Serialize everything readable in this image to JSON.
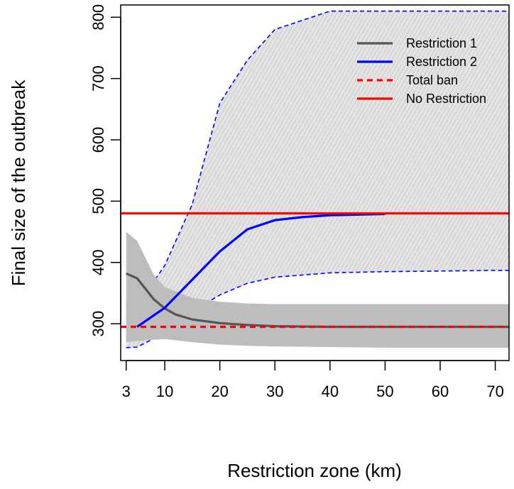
{
  "chart_data": {
    "type": "line",
    "title": "",
    "xlabel": "Restriction zone (km)",
    "ylabel": "Final size of the outbreak",
    "xlim": [
      2,
      72.5
    ],
    "ylim": [
      240,
      820
    ],
    "x_ticks": [
      3,
      10,
      20,
      30,
      40,
      50,
      60,
      70
    ],
    "y_ticks": [
      300,
      400,
      500,
      600,
      700,
      800
    ],
    "grid": false,
    "legend": {
      "placement": "top-right",
      "entries": [
        {
          "label": "Restriction 1",
          "color": "#555555",
          "style": "solid"
        },
        {
          "label": "Restriction 2",
          "color": "#0000ff",
          "style": "solid"
        },
        {
          "label": "Total ban",
          "color": "#ff0000",
          "style": "dashed"
        },
        {
          "label": "No Restriction",
          "color": "#ff0000",
          "style": "solid"
        }
      ]
    },
    "bands": [
      {
        "series": "Restriction 2",
        "fill": "hatched-gray",
        "edge_color": "#0000ff",
        "x": [
          3,
          5,
          10,
          15,
          20,
          25,
          30,
          40,
          50,
          60,
          70,
          72.5
        ],
        "lower": [
          261,
          262,
          285,
          320,
          347,
          366,
          376,
          383,
          385,
          386,
          387,
          387
        ],
        "upper": [
          330,
          330,
          395,
          495,
          660,
          730,
          780,
          810,
          810,
          810,
          810,
          810
        ]
      },
      {
        "series": "Restriction 1",
        "fill": "#bdbdbd",
        "x": [
          3,
          5,
          8,
          10,
          15,
          20,
          25,
          30,
          40,
          50,
          60,
          70,
          72.5
        ],
        "lower": [
          270,
          272,
          274,
          275,
          270,
          266,
          264,
          263,
          262,
          261,
          261,
          261,
          261
        ],
        "upper": [
          450,
          435,
          380,
          360,
          342,
          336,
          333,
          332,
          332,
          332,
          332,
          332,
          332
        ]
      }
    ],
    "series": [
      {
        "name": "Restriction 1",
        "color": "#555555",
        "style": "solid",
        "x": [
          3,
          5,
          8,
          10,
          12,
          15,
          20,
          25,
          30,
          40,
          50,
          60,
          70,
          72.5
        ],
        "values": [
          382,
          374,
          340,
          325,
          315,
          307,
          301,
          298,
          296,
          295,
          295,
          295,
          295,
          295
        ]
      },
      {
        "name": "Restriction 2",
        "color": "#0000ff",
        "style": "solid",
        "x": [
          5,
          10,
          15,
          20,
          25,
          30,
          35,
          40,
          45,
          50
        ],
        "values": [
          295,
          326,
          372,
          418,
          454,
          469,
          474,
          477,
          478,
          479
        ]
      },
      {
        "name": "Total ban",
        "color": "#ff0000",
        "style": "dashed",
        "x": [
          2,
          72.5
        ],
        "values": [
          295,
          295
        ]
      },
      {
        "name": "No Restriction",
        "color": "#ff0000",
        "style": "solid",
        "x": [
          2,
          72.5
        ],
        "values": [
          480,
          480
        ]
      }
    ]
  }
}
